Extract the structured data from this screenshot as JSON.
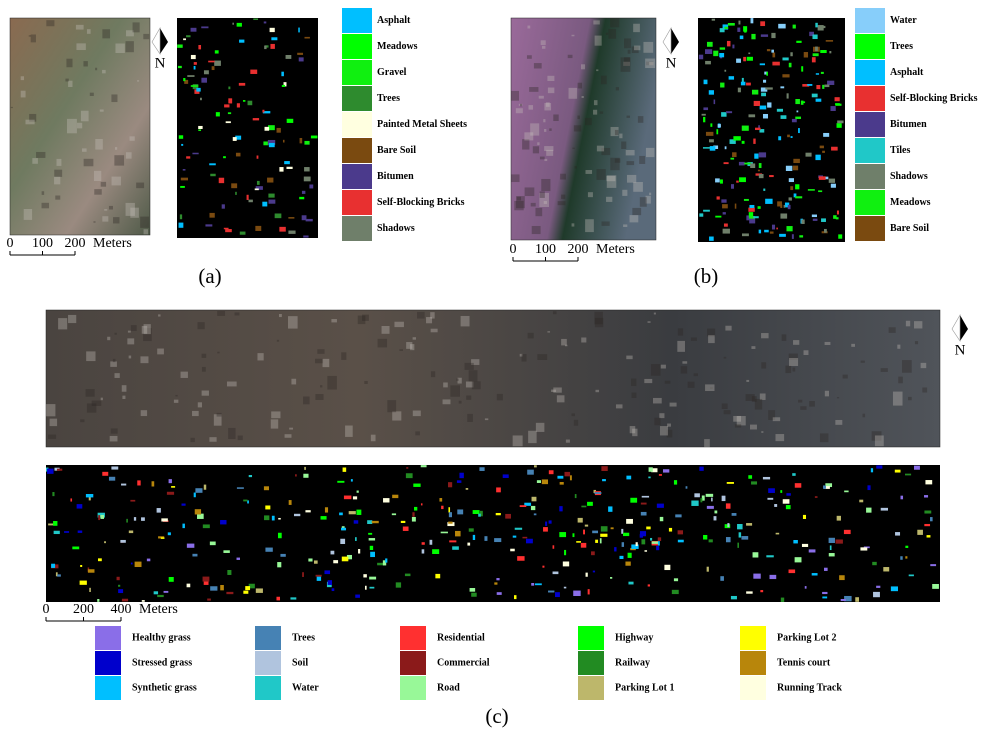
{
  "panels": [
    {
      "label": "(a)",
      "north": "N",
      "scale": {
        "ticks": [
          0,
          100,
          200
        ],
        "unit": "Meters"
      },
      "legend": [
        {
          "name": "Asphalt",
          "color": "#00bfff"
        },
        {
          "name": "Meadows",
          "color": "#00ff00"
        },
        {
          "name": "Gravel",
          "color": "#10f010"
        },
        {
          "name": "Trees",
          "color": "#2e8b2e"
        },
        {
          "name": "Painted Metal Sheets",
          "color": "#ffffe0"
        },
        {
          "name": "Bare Soil",
          "color": "#7a4a10"
        },
        {
          "name": "Bitumen",
          "color": "#4b3a8c"
        },
        {
          "name": "Self-Blocking Bricks",
          "color": "#e83030"
        },
        {
          "name": "Shadows",
          "color": "#6f7f6a"
        }
      ]
    },
    {
      "label": "(b)",
      "north": "N",
      "scale": {
        "ticks": [
          0,
          100,
          200
        ],
        "unit": "Meters"
      },
      "legend": [
        {
          "name": "Water",
          "color": "#87cefa"
        },
        {
          "name": "Trees",
          "color": "#00ff00"
        },
        {
          "name": "Asphalt",
          "color": "#00bfff"
        },
        {
          "name": "Self-Blocking Bricks",
          "color": "#e83030"
        },
        {
          "name": "Bitumen",
          "color": "#4b3a8c"
        },
        {
          "name": "Tiles",
          "color": "#20c8c8"
        },
        {
          "name": "Shadows",
          "color": "#6f7f6a"
        },
        {
          "name": "Meadows",
          "color": "#10f010"
        },
        {
          "name": "Bare Soil",
          "color": "#7a4a10"
        }
      ]
    },
    {
      "label": "(c)",
      "north": "N",
      "scale": {
        "ticks": [
          0,
          200,
          400
        ],
        "unit": "Meters"
      },
      "legend": [
        {
          "name": "Healthy grass",
          "color": "#8a6ee8"
        },
        {
          "name": "Stressed grass",
          "color": "#0000cc"
        },
        {
          "name": "Synthetic grass",
          "color": "#00bfff"
        },
        {
          "name": "Trees",
          "color": "#4682b4"
        },
        {
          "name": "Soil",
          "color": "#b0c4de"
        },
        {
          "name": "Water",
          "color": "#20c8c8"
        },
        {
          "name": "Residential",
          "color": "#ff3030"
        },
        {
          "name": "Commercial",
          "color": "#8b1a1a"
        },
        {
          "name": "Road",
          "color": "#98f898"
        },
        {
          "name": "Highway",
          "color": "#00ff00"
        },
        {
          "name": "Railway",
          "color": "#228b22"
        },
        {
          "name": "Parking Lot 1",
          "color": "#bdb76b"
        },
        {
          "name": "Parking Lot 2",
          "color": "#ffff00"
        },
        {
          "name": "Tennis court",
          "color": "#b8860b"
        },
        {
          "name": "Running Track",
          "color": "#ffffe0"
        }
      ]
    }
  ]
}
